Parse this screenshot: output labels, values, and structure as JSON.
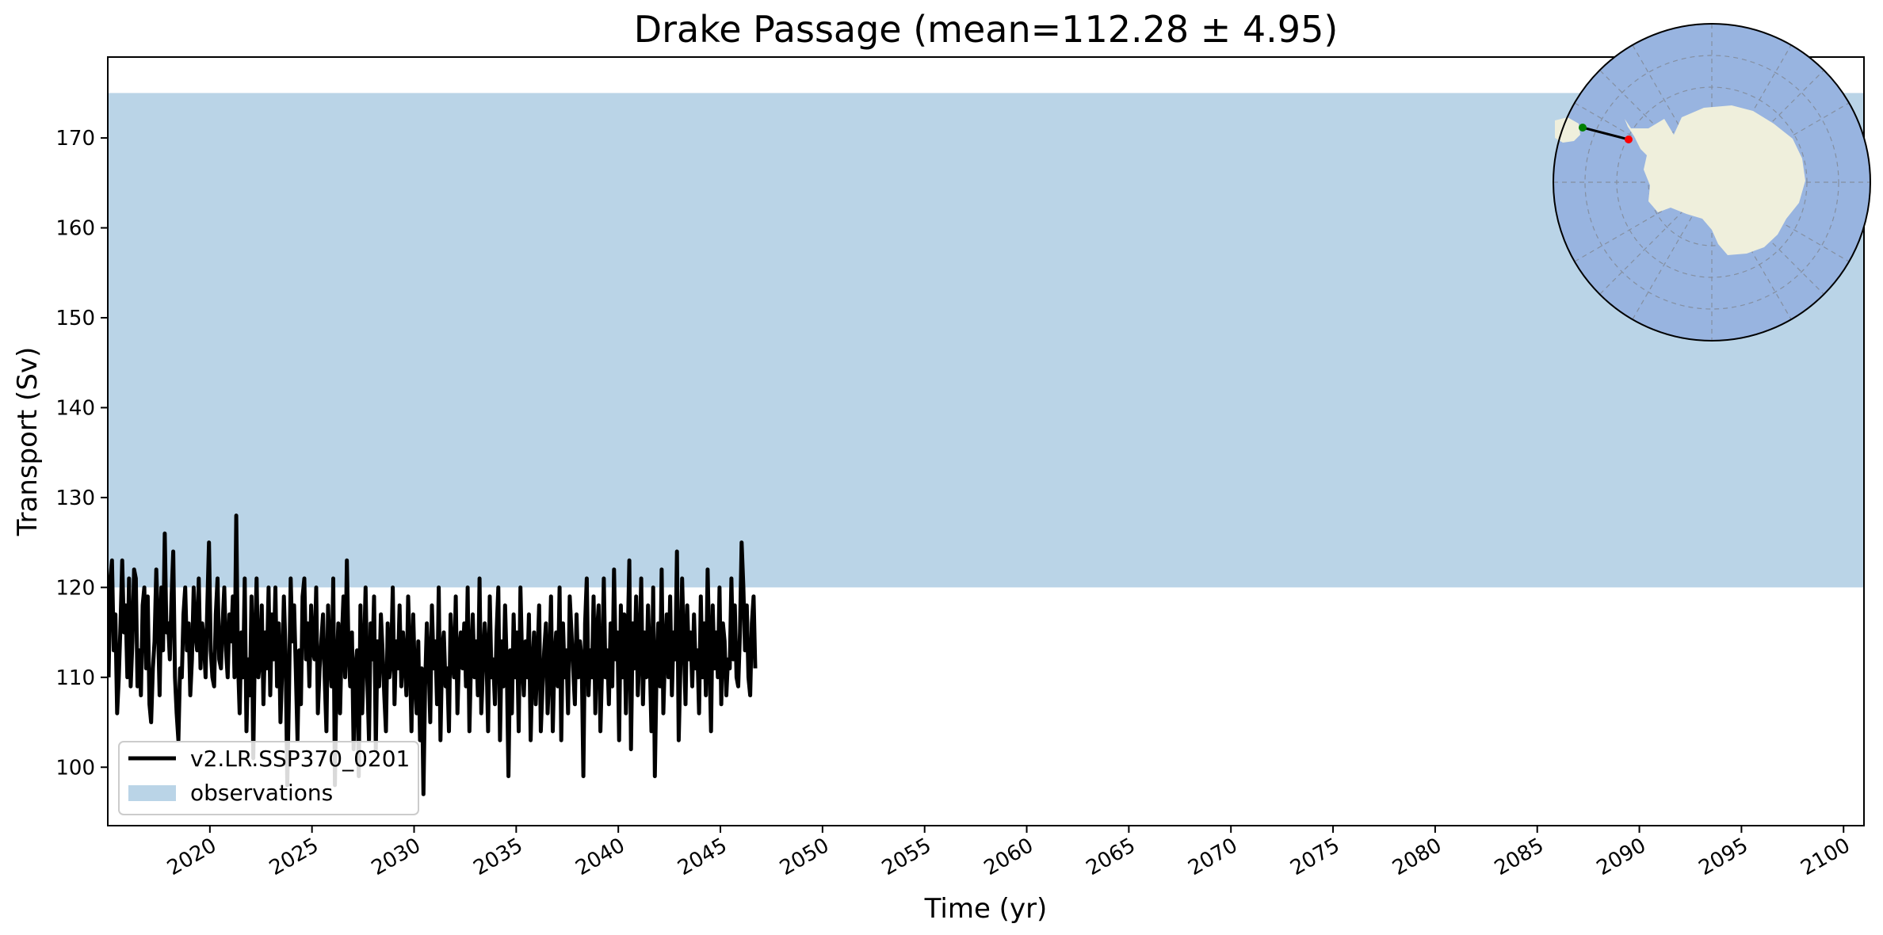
{
  "chart_data": {
    "type": "line",
    "title": "Drake Passage (mean=112.28 ± 4.95)",
    "xlabel": "Time (yr)",
    "ylabel": "Transport (Sv)",
    "xlim": [
      2015,
      2101
    ],
    "ylim": [
      93.5,
      179
    ],
    "x_ticks": [
      2020,
      2025,
      2030,
      2035,
      2040,
      2045,
      2050,
      2055,
      2060,
      2065,
      2070,
      2075,
      2080,
      2085,
      2090,
      2095,
      2100
    ],
    "y_ticks": [
      100,
      110,
      120,
      130,
      140,
      150,
      160,
      170
    ],
    "x_tick_rotation_deg": 30,
    "grid": false,
    "legend_position": "lower-left",
    "observations_band": {
      "name": "observations",
      "y_min": 120,
      "y_max": 175,
      "color": "#bad4e7"
    },
    "series": [
      {
        "name": "v2.LR.SSP370_0201",
        "color": "#000000",
        "start_year": 2015.04,
        "step_years": 0.0833333,
        "values": [
          110,
          121,
          123,
          113,
          117,
          106,
          110,
          116,
          123,
          115,
          118,
          110,
          121,
          109,
          114,
          122,
          121,
          109,
          113,
          108,
          118,
          120,
          111,
          119,
          107,
          105,
          111,
          114,
          122,
          116,
          108,
          120,
          113,
          126,
          115,
          116,
          112,
          119,
          124,
          110,
          106,
          103,
          111,
          110,
          117,
          120,
          113,
          116,
          108,
          112,
          120,
          115,
          113,
          121,
          111,
          116,
          114,
          110,
          118,
          125,
          113,
          110,
          109,
          117,
          121,
          112,
          111,
          116,
          120,
          113,
          110,
          117,
          114,
          119,
          110,
          128,
          112,
          106,
          115,
          110,
          121,
          104,
          112,
          108,
          119,
          101,
          114,
          121,
          110,
          112,
          118,
          107,
          115,
          111,
          120,
          108,
          117,
          112,
          120,
          109,
          116,
          105,
          111,
          119,
          113,
          98,
          108,
          121,
          114,
          118,
          111,
          103,
          113,
          107,
          119,
          121,
          112,
          116,
          109,
          118,
          113,
          112,
          120,
          106,
          111,
          114,
          117,
          110,
          104,
          118,
          112,
          109,
          121,
          98,
          111,
          116,
          106,
          114,
          119,
          110,
          123,
          113,
          109,
          115,
          102,
          111,
          113,
          99,
          118,
          106,
          112,
          120,
          110,
          103,
          116,
          112,
          119,
          102,
          114,
          109,
          117,
          113,
          108,
          104,
          116,
          110,
          112,
          120,
          107,
          114,
          111,
          118,
          109,
          115,
          112,
          108,
          119,
          113,
          104,
          117,
          110,
          106,
          114,
          103,
          111,
          97,
          109,
          116,
          112,
          105,
          118,
          111,
          114,
          107,
          120,
          103,
          113,
          115,
          109,
          111,
          104,
          117,
          112,
          110,
          119,
          106,
          113,
          115,
          111,
          116,
          109,
          120,
          104,
          112,
          117,
          110,
          114,
          108,
          121,
          106,
          111,
          116,
          113,
          104,
          119,
          110,
          112,
          107,
          115,
          120,
          103,
          114,
          109,
          118,
          111,
          99,
          113,
          106,
          117,
          110,
          115,
          104,
          120,
          112,
          108,
          114,
          110,
          117,
          103,
          111,
          115,
          107,
          112,
          118,
          104,
          109,
          113,
          116,
          106,
          111,
          119,
          104,
          112,
          115,
          109,
          120,
          103,
          116,
          110,
          113,
          106,
          119,
          115,
          111,
          107,
          117,
          110,
          114,
          112,
          99,
          116,
          121,
          108,
          113,
          110,
          119,
          106,
          115,
          118,
          104,
          111,
          121,
          110,
          113,
          107,
          116,
          109,
          122,
          112,
          115,
          103,
          118,
          110,
          117,
          106,
          114,
          123,
          102,
          116,
          111,
          119,
          108,
          113,
          121,
          107,
          115,
          110,
          118,
          112,
          104,
          120,
          99,
          111,
          116,
          109,
          122,
          106,
          113,
          117,
          110,
          119,
          108,
          115,
          112,
          124,
          103,
          111,
          121,
          114,
          107,
          118,
          112,
          115,
          109,
          117,
          111,
          113,
          106,
          119,
          110,
          116,
          108,
          122,
          113,
          104,
          118,
          111,
          115,
          110,
          120,
          107,
          116,
          114,
          108,
          112,
          111,
          121,
          112,
          118,
          110,
          109,
          115,
          125,
          120,
          113,
          118,
          110,
          108,
          116,
          119,
          111
        ]
      }
    ],
    "inset_map": {
      "projection": "south-polar-stereographic",
      "land_color": "#efefdc",
      "ocean_color": "#98b4e0",
      "section_start_color": "#008000",
      "section_end_color": "#ff0000"
    }
  }
}
